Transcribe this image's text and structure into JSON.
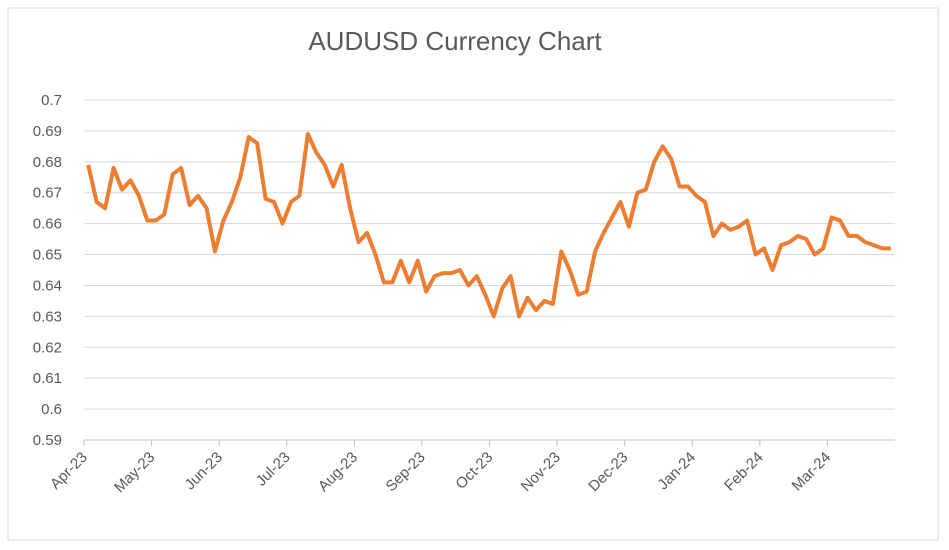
{
  "chart_data": {
    "type": "line",
    "title": "AUDUSD Currency Chart",
    "categories": [
      "Apr-23",
      null,
      null,
      null,
      null,
      null,
      null,
      null,
      "May-23",
      null,
      null,
      null,
      null,
      null,
      null,
      null,
      "Jun-23",
      null,
      null,
      null,
      null,
      null,
      null,
      null,
      "Jul-23",
      null,
      null,
      null,
      null,
      null,
      null,
      null,
      "Aug-23",
      null,
      null,
      null,
      null,
      null,
      null,
      null,
      "Sep-23",
      null,
      null,
      null,
      null,
      null,
      null,
      null,
      "Oct-23",
      null,
      null,
      null,
      null,
      null,
      null,
      null,
      "Nov-23",
      null,
      null,
      null,
      null,
      null,
      null,
      null,
      "Dec-23",
      null,
      null,
      null,
      null,
      null,
      null,
      null,
      "Jan-24",
      null,
      null,
      null,
      null,
      null,
      null,
      null,
      "Feb-24",
      null,
      null,
      null,
      null,
      null,
      null,
      null,
      "Mar-24",
      null,
      null,
      null,
      null,
      null,
      null,
      null
    ],
    "series": [
      {
        "name": "AUDUSD",
        "color": "#ed7d31",
        "values": [
          0.679,
          0.667,
          0.665,
          0.678,
          0.671,
          0.674,
          0.669,
          0.661,
          0.661,
          0.663,
          0.676,
          0.678,
          0.666,
          0.669,
          0.665,
          0.651,
          0.661,
          0.667,
          0.675,
          0.688,
          0.686,
          0.668,
          0.667,
          0.66,
          0.667,
          0.669,
          0.689,
          0.683,
          0.679,
          0.672,
          0.679,
          0.665,
          0.654,
          0.657,
          0.65,
          0.641,
          0.641,
          0.648,
          0.641,
          0.648,
          0.638,
          0.643,
          0.644,
          0.644,
          0.645,
          0.64,
          0.643,
          0.637,
          0.63,
          0.639,
          0.643,
          0.63,
          0.636,
          0.632,
          0.635,
          0.634,
          0.651,
          0.645,
          0.637,
          0.638,
          0.651,
          0.657,
          0.662,
          0.667,
          0.659,
          0.67,
          0.671,
          0.68,
          0.685,
          0.681,
          0.672,
          0.672,
          0.669,
          0.667,
          0.656,
          0.66,
          0.658,
          0.659,
          0.661,
          0.65,
          0.652,
          0.645,
          0.653,
          0.654,
          0.656,
          0.655,
          0.65,
          0.652,
          0.662,
          0.661,
          0.656,
          0.656,
          0.654,
          0.653,
          0.652,
          0.652
        ]
      }
    ],
    "ylim": [
      0.59,
      0.7
    ],
    "yticks": [
      0.59,
      0.6,
      0.61,
      0.62,
      0.63,
      0.64,
      0.65,
      0.66,
      0.67,
      0.68,
      0.69,
      0.7
    ],
    "grid": true
  }
}
